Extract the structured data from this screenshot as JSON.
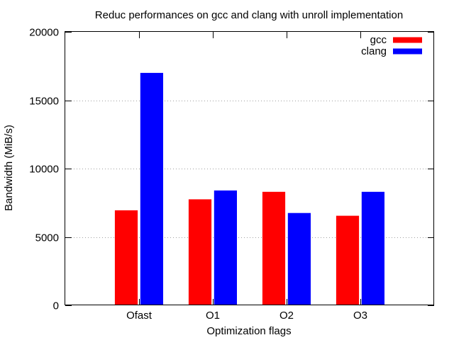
{
  "chart_data": {
    "type": "bar",
    "title": "Reduc performances on gcc and clang with unroll implementation",
    "xlabel": "Optimization flags",
    "ylabel": "Bandwidth (MiB/s)",
    "categories": [
      "Ofast",
      "O1",
      "O2",
      "O3"
    ],
    "series": [
      {
        "name": "gcc",
        "color": "#ff0000",
        "values": [
          6950,
          7750,
          8300,
          6550
        ]
      },
      {
        "name": "clang",
        "color": "#0000ff",
        "values": [
          17000,
          8400,
          6750,
          8300
        ]
      }
    ],
    "ylim": [
      0,
      20000
    ],
    "yticks": [
      "0",
      "5000",
      "10000",
      "15000",
      "20000"
    ],
    "grid": true,
    "legend_position": "top-right"
  }
}
